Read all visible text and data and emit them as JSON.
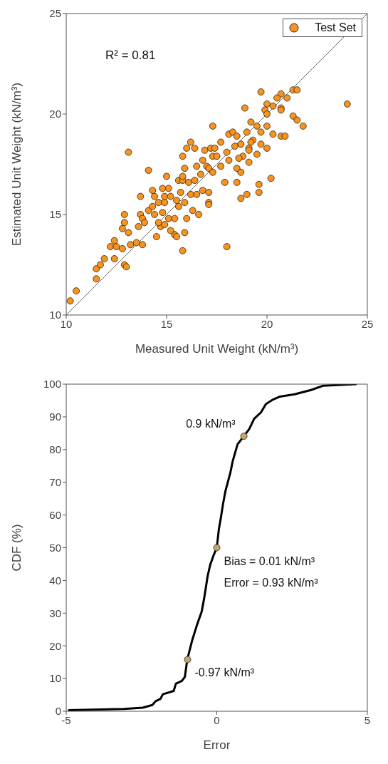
{
  "chart_data": [
    {
      "type": "scatter",
      "xlabel": "Measured Unit Weight (kN/m³)",
      "ylabel": "Estimated Unit Weight (kN/m³)",
      "xlim": [
        10,
        25
      ],
      "ylim": [
        10,
        25
      ],
      "xticks": [
        10,
        15,
        20,
        25
      ],
      "yticks": [
        10,
        15,
        20,
        25
      ],
      "legend": "top right",
      "annotations": [
        "R² = 0.81"
      ],
      "series": [
        {
          "name": "Test Set",
          "color": "#f7931e",
          "marker": "circle",
          "x": [
            10.2,
            10.5,
            11.5,
            11.5,
            11.7,
            11.9,
            12.4,
            12.9,
            13.0,
            13.1,
            14.1,
            13.7,
            12.9,
            12.9,
            12.8,
            13.1,
            12.4,
            12.2,
            12.5,
            12.8,
            13.2,
            13.5,
            13.8,
            13.6,
            13.7,
            13.8,
            13.9,
            14.1,
            14.3,
            14.3,
            14.4,
            14.6,
            14.8,
            14.9,
            14.9,
            15.1,
            15.2,
            15.0,
            15.5,
            15.6,
            15.8,
            15.7,
            15.9,
            15.8,
            16.0,
            15.8,
            16.2,
            16.4,
            16.0,
            15.9,
            15.8,
            15.4,
            15.5,
            15.2,
            14.5,
            14.7,
            14.8,
            14.4,
            14.6,
            14.9,
            15.1,
            15.4,
            15.6,
            15.9,
            16.2,
            16.3,
            16.6,
            16.5,
            16.8,
            17.1,
            17.1,
            16.5,
            16.7,
            16.8,
            17.0,
            16.9,
            17.2,
            17.3,
            16.1,
            16.4,
            19.7,
            18.9,
            20.0,
            19.9,
            20.0,
            20.0,
            19.2,
            19.0,
            19.5,
            19.7,
            20.3,
            20.7,
            20.9,
            21.3,
            21.5,
            21.8,
            24.0,
            20.7,
            21.0,
            21.3,
            21.5,
            20.5,
            20.7,
            20.7,
            20.3,
            17.3,
            18.1,
            18.3,
            18.5,
            17.7,
            17.4,
            18.7,
            19.1,
            19.7,
            20.0,
            19.3,
            17.5,
            18.0,
            18.4,
            19.2,
            19.1,
            19.5,
            18.8,
            18.6,
            19.1,
            18.5,
            18.7,
            17.7,
            18.1,
            17.9,
            18.5,
            19.6,
            20.2,
            19.0,
            18.7,
            19.6,
            18.0,
            17.1,
            17.1,
            17.3
          ],
          "values": [
            10.7,
            11.2,
            11.8,
            12.3,
            12.5,
            12.8,
            12.8,
            12.5,
            12.4,
            18.1,
            17.2,
            15.9,
            15.0,
            14.6,
            14.3,
            14.1,
            13.7,
            13.4,
            13.4,
            13.3,
            13.5,
            13.6,
            13.5,
            14.4,
            15.0,
            14.8,
            14.6,
            15.2,
            15.4,
            16.2,
            15.9,
            15.6,
            16.3,
            15.9,
            15.6,
            16.3,
            15.9,
            16.9,
            15.7,
            16.7,
            16.7,
            16.1,
            17.3,
            16.9,
            18.3,
            17.9,
            18.6,
            18.3,
            14.8,
            14.1,
            13.2,
            14.0,
            13.9,
            14.2,
            13.9,
            14.4,
            15.1,
            15.0,
            14.6,
            14.5,
            14.8,
            14.8,
            15.4,
            15.6,
            16.0,
            15.2,
            15.0,
            16.0,
            16.2,
            15.6,
            16.1,
            17.4,
            17.0,
            17.7,
            17.4,
            18.2,
            18.3,
            17.9,
            16.6,
            16.7,
            21.1,
            20.3,
            20.5,
            20.2,
            20.0,
            19.4,
            19.6,
            19.1,
            19.4,
            19.1,
            19.0,
            18.9,
            18.9,
            19.9,
            19.7,
            19.4,
            20.5,
            21.0,
            20.8,
            21.2,
            21.2,
            20.8,
            20.3,
            20.2,
            20.4,
            19.4,
            19.0,
            19.1,
            18.9,
            18.6,
            18.3,
            18.5,
            18.3,
            18.5,
            18.3,
            18.7,
            17.9,
            18.1,
            18.4,
            18.6,
            18.2,
            18.0,
            17.9,
            17.8,
            17.6,
            17.3,
            17.1,
            17.4,
            17.7,
            16.6,
            16.6,
            16.5,
            16.8,
            16.0,
            15.8,
            16.1,
            13.4,
            15.5,
            17.3,
            17.1
          ]
        },
        {
          "type": "line",
          "color": "#404040",
          "x": [
            10,
            25
          ],
          "values": [
            10,
            25
          ]
        }
      ]
    },
    {
      "type": "line",
      "xlabel": "Error",
      "ylabel": "CDF (%)",
      "xlim": [
        -5,
        5
      ],
      "ylim": [
        0,
        100
      ],
      "xticks": [
        -5,
        0,
        5
      ],
      "yticks": [
        0,
        10,
        20,
        30,
        40,
        50,
        60,
        70,
        80,
        90,
        100
      ],
      "legend": false,
      "annotations": [
        {
          "text": "0.9 kN/m³",
          "x": 0.9,
          "y": 84.1
        },
        {
          "text": "Bias = 0.01 kN/m³",
          "x": 0,
          "y": 50
        },
        {
          "text": "Error = 0.93 kN/m³",
          "x": 0,
          "y": 50
        },
        {
          "text": "-0.97 kN/m³",
          "x": -0.97,
          "y": 15.8
        }
      ],
      "series": [
        {
          "color": "#000000",
          "x": [
            -4.91,
            -3.09,
            -2.46,
            -2.14,
            -2.03,
            -1.87,
            -1.79,
            -1.43,
            -1.36,
            -1.16,
            -1.06,
            -0.98,
            -0.81,
            -0.65,
            -0.5,
            -0.42,
            -0.3,
            -0.22,
            -0.1,
            0,
            0.07,
            0.13,
            0.21,
            0.29,
            0.45,
            0.53,
            0.69,
            0.9,
            1.08,
            1.24,
            1.47,
            1.63,
            1.87,
            2.1,
            2.58,
            3.13,
            3.52,
            4.62
          ],
          "values": [
            0.3,
            0.7,
            1.1,
            1.9,
            3.1,
            3.8,
            5.2,
            6.2,
            8.4,
            9.3,
            10.5,
            15.8,
            21.9,
            26.6,
            30.5,
            34.5,
            41.5,
            44.7,
            47.8,
            50,
            55.7,
            58.8,
            63.5,
            67.4,
            72.9,
            76.5,
            81.6,
            84.1,
            86.3,
            89.4,
            91.4,
            93.9,
            95.3,
            96.2,
            96.9,
            98.2,
            99.5,
            100
          ]
        },
        {
          "type": "scatter",
          "color": "#c8a465",
          "marker": "circle",
          "x": [
            -0.97,
            0,
            0.9
          ],
          "values": [
            15.8,
            50,
            84.1
          ]
        }
      ]
    }
  ]
}
